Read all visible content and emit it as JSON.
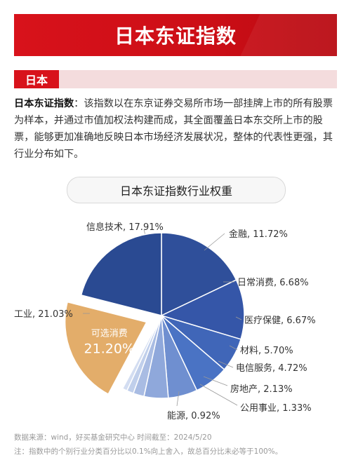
{
  "header": {
    "title": "日本东证指数"
  },
  "section": {
    "tag": "日本"
  },
  "intro": {
    "lead": "日本东证指数",
    "text": "：该指数以在东京证券交易所市场一部挂牌上市的所有股票为样本，并通过市值加权法构建而成，其全面覆盖日本东交所上市的股票，能够更加准确地反映日本市场经济发展状况，整体的代表性更强，其行业分布如下。"
  },
  "chart_data": {
    "type": "pie",
    "title": "日本东证指数行业权重",
    "unit": "%",
    "slices": [
      {
        "name": "信息技术",
        "value": 17.91,
        "label": "信息技术, 17.91%",
        "color": "#2f4f9a"
      },
      {
        "name": "金融",
        "value": 11.72,
        "label": "金融, 11.72%",
        "color": "#3556a8"
      },
      {
        "name": "日常消费",
        "value": 6.68,
        "label": "日常消费, 6.68%",
        "color": "#4066b8"
      },
      {
        "name": "医疗保健",
        "value": 6.67,
        "label": "医疗保健, 6.67%",
        "color": "#4a73c4"
      },
      {
        "name": "材料",
        "value": 5.7,
        "label": "材料, 5.70%",
        "color": "#6f8fd0"
      },
      {
        "name": "电信服务",
        "value": 4.72,
        "label": "电信服务, 4.72%",
        "color": "#8fa8db"
      },
      {
        "name": "房地产",
        "value": 2.13,
        "label": "房地产, 2.13%",
        "color": "#a9bce3"
      },
      {
        "name": "公用事业",
        "value": 1.33,
        "label": "公用事业, 1.33%",
        "color": "#c0cfeb"
      },
      {
        "name": "能源",
        "value": 0.92,
        "label": "能源, 0.92%",
        "color": "#d3ddf1"
      },
      {
        "name": "可选消费",
        "value": 21.2,
        "label_name": "可选消费",
        "label_value": "21.20%",
        "color": "#e3ad6a",
        "highlight": true
      },
      {
        "name": "工业",
        "value": 21.03,
        "label": "工业, 21.03%",
        "color": "#2a4a92"
      }
    ]
  },
  "footer": {
    "source": "数据来源：wind，好买基金研究中心  时间截至：2024/5/20",
    "note": "注：指数中的个别行业分类百分比以0.1%向上舍入，故总百分比未必等于100%。"
  }
}
